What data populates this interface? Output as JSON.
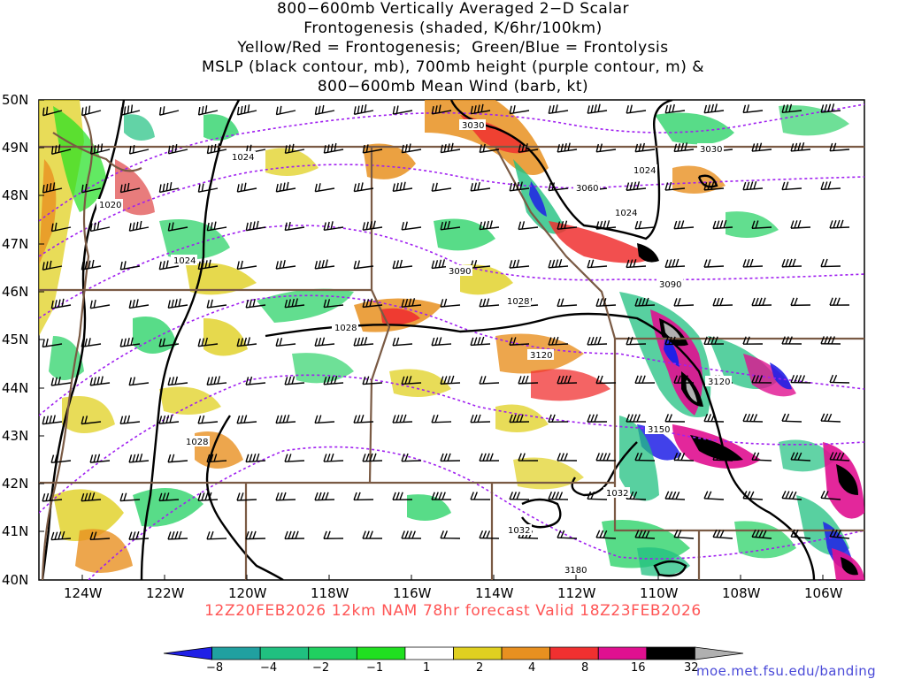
{
  "title": {
    "lines": [
      "800−600mb Vertically Averaged 2−D Scalar",
      "Frontogenesis (shaded, K/6hr/100km)",
      "Yellow/Red = Frontogenesis;  Green/Blue = Frontolysis",
      "MSLP (black contour, mb), 700mb height (purple contour, m) &",
      "800−600mb Mean Wind (barb, kt)"
    ]
  },
  "axes": {
    "lat_labels": [
      "50N",
      "49N",
      "48N",
      "47N",
      "46N",
      "45N",
      "44N",
      "43N",
      "42N",
      "41N",
      "40N"
    ],
    "lon_labels": [
      "124W",
      "122W",
      "120W",
      "118W",
      "116W",
      "114W",
      "112W",
      "110W",
      "108W",
      "106W"
    ]
  },
  "contour_labels": {
    "mslp": [
      "1024",
      "1020",
      "1024",
      "1028",
      "1028",
      "1024",
      "1024",
      "1032",
      "1032",
      "1028"
    ],
    "height": [
      "3030",
      "3060",
      "3090",
      "3090",
      "3120",
      "3120",
      "3150",
      "3180",
      "3030"
    ]
  },
  "colorbar": {
    "labels": [
      "−8",
      "−4",
      "−2",
      "−1",
      "1",
      "2",
      "4",
      "8",
      "16",
      "32"
    ],
    "colors": [
      "#2020e6",
      "#20a0a0",
      "#20c080",
      "#20d060",
      "#20e020",
      "#ffffff",
      "#e0d020",
      "#e89020",
      "#f03030",
      "#e01090",
      "#000000",
      "#b0b0b0"
    ]
  },
  "colors": {
    "state_border": "#7a5a44",
    "mslp": "#000000",
    "height": "#a020f0",
    "barb": "#000000"
  },
  "footer": {
    "run": "12Z20FEB2026 12km NAM 78hr forecast Valid 18Z23FEB2026",
    "credit": "moe.met.fsu.edu/banding"
  }
}
